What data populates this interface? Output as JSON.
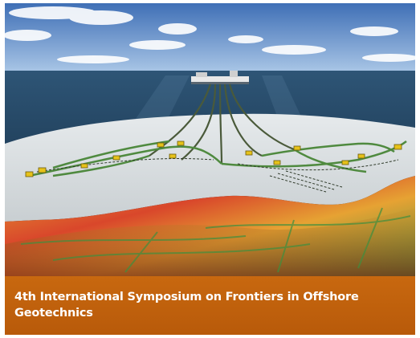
{
  "banner": {
    "caption": "4th International Symposium on Frontiers in Offshore Geotechnics"
  },
  "illustration": {
    "subject": "offshore-field-seabed",
    "colors": {
      "sky_top": "#3f6fb6",
      "sky_bottom": "#a9c6e6",
      "sea": "#1f3c5a",
      "seabed": "#dfe3e5",
      "pipeline": "#4f8a3f",
      "subsea_structure": "#e6c21a",
      "subsurface_hot": "#d9472b",
      "subsurface_mid": "#e6a233",
      "subsurface_cool": "#3f8f3f",
      "caption_band": "#c0620d"
    }
  }
}
